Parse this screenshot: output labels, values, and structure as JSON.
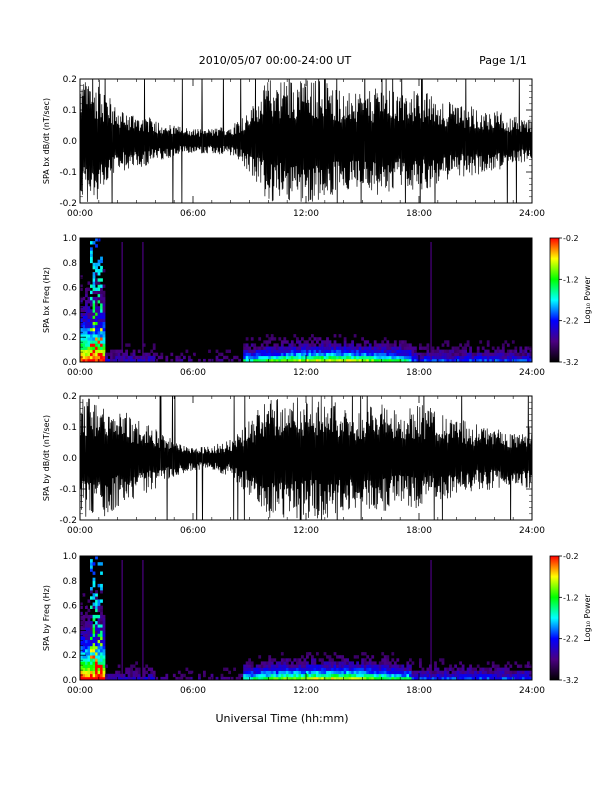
{
  "header": {
    "title": "2010/05/07  00:00-24:00 UT",
    "page": "Page 1/1"
  },
  "xlabel": "Universal Time (hh:mm)",
  "colorbar": {
    "label": "Log₁₀ Power",
    "ticks": [
      "-0.2",
      "-1.2",
      "-2.2",
      "-3.2"
    ],
    "range": [
      -3.2,
      -0.2
    ],
    "colors": [
      "#000000",
      "#4b0082",
      "#0000ff",
      "#00ffff",
      "#00ff00",
      "#ffff00",
      "#ff0000"
    ]
  },
  "chart_data": [
    {
      "type": "line",
      "ylabel": "SPA bx dB/dt (nT/sec)",
      "xlim": [
        "00:00",
        "24:00"
      ],
      "ylim": [
        -0.2,
        0.2
      ],
      "xticks": [
        "00:00",
        "06:00",
        "12:00",
        "18:00",
        "24:00"
      ],
      "yticks": [
        "0.2",
        "0.1",
        "0.0",
        "-0.1",
        "-0.2"
      ],
      "series_color": "#000000",
      "envelope_hours": [
        0,
        1,
        2,
        3,
        4,
        5,
        6,
        7,
        8,
        9,
        10,
        11,
        12,
        13,
        14,
        15,
        16,
        17,
        18,
        19,
        20,
        21,
        22,
        23,
        24
      ],
      "envelope_amplitude": [
        0.2,
        0.2,
        0.1,
        0.09,
        0.07,
        0.05,
        0.04,
        0.04,
        0.05,
        0.1,
        0.2,
        0.2,
        0.2,
        0.2,
        0.16,
        0.15,
        0.18,
        0.15,
        0.17,
        0.14,
        0.12,
        0.11,
        0.1,
        0.08,
        0.07
      ]
    },
    {
      "type": "heatmap",
      "ylabel": "SPA bx Freq (Hz)",
      "xlim": [
        "00:00",
        "24:00"
      ],
      "ylim": [
        0.0,
        1.0
      ],
      "xticks": [
        "00:00",
        "06:00",
        "12:00",
        "18:00",
        "24:00"
      ],
      "yticks": [
        "1.0",
        "0.8",
        "0.6",
        "0.4",
        "0.2",
        "0.0"
      ],
      "value_label": "Log₁₀ Power",
      "value_range": [
        -3.2,
        -0.2
      ]
    },
    {
      "type": "line",
      "ylabel": "SPA by dB/dt (nT/sec)",
      "xlim": [
        "00:00",
        "24:00"
      ],
      "ylim": [
        -0.2,
        0.2
      ],
      "xticks": [
        "00:00",
        "06:00",
        "12:00",
        "18:00",
        "24:00"
      ],
      "yticks": [
        "0.2",
        "0.1",
        "0.0",
        "-0.1",
        "-0.2"
      ],
      "series_color": "#000000",
      "envelope_hours": [
        0,
        1,
        2,
        3,
        4,
        5,
        6,
        7,
        8,
        9,
        10,
        11,
        12,
        13,
        14,
        15,
        16,
        17,
        18,
        19,
        20,
        21,
        22,
        23,
        24
      ],
      "envelope_amplitude": [
        0.2,
        0.2,
        0.16,
        0.13,
        0.1,
        0.06,
        0.04,
        0.04,
        0.06,
        0.12,
        0.2,
        0.2,
        0.2,
        0.2,
        0.17,
        0.16,
        0.18,
        0.15,
        0.18,
        0.15,
        0.13,
        0.11,
        0.1,
        0.09,
        0.1
      ]
    },
    {
      "type": "heatmap",
      "ylabel": "SPA by Freq (Hz)",
      "xlim": [
        "00:00",
        "24:00"
      ],
      "ylim": [
        0.0,
        1.0
      ],
      "xticks": [
        "00:00",
        "06:00",
        "12:00",
        "18:00",
        "24:00"
      ],
      "yticks": [
        "1.0",
        "0.8",
        "0.6",
        "0.4",
        "0.2",
        "0.0"
      ],
      "value_label": "Log₁₀ Power",
      "value_range": [
        -3.2,
        -0.2
      ]
    }
  ]
}
